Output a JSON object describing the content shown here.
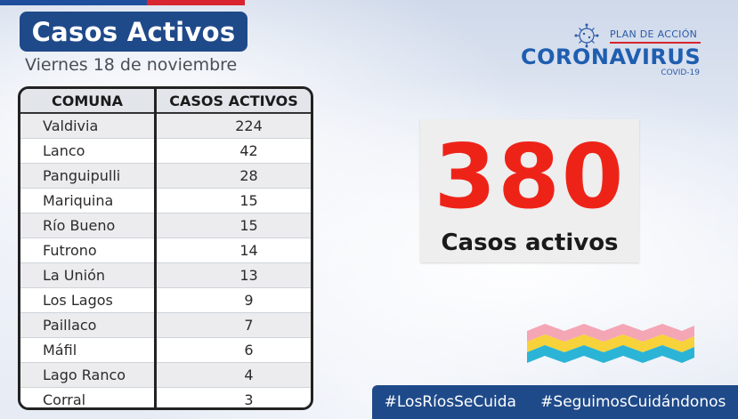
{
  "header": {
    "title": "Casos Activos",
    "date": "Viernes 18 de noviembre"
  },
  "logo": {
    "plan_text": "PLAN DE ACCIÓN",
    "brand_text": "CORONAVIRUS",
    "sub_text": "COVID-19",
    "icon": "virus-icon"
  },
  "table": {
    "headers": [
      "COMUNA",
      "CASOS ACTIVOS"
    ],
    "rows": [
      {
        "comuna": "Valdivia",
        "casos": "224"
      },
      {
        "comuna": "Lanco",
        "casos": "42"
      },
      {
        "comuna": "Panguipulli",
        "casos": "28"
      },
      {
        "comuna": "Mariquina",
        "casos": "15"
      },
      {
        "comuna": "Río Bueno",
        "casos": "15"
      },
      {
        "comuna": "Futrono",
        "casos": "14"
      },
      {
        "comuna": "La Unión",
        "casos": "13"
      },
      {
        "comuna": "Los Lagos",
        "casos": "9"
      },
      {
        "comuna": "Paillaco",
        "casos": "7"
      },
      {
        "comuna": "Máfil",
        "casos": "6"
      },
      {
        "comuna": "Lago Ranco",
        "casos": "4"
      },
      {
        "comuna": "Corral",
        "casos": "3"
      }
    ]
  },
  "summary": {
    "total": "380",
    "label": "Casos activos"
  },
  "footer": {
    "hashtags": [
      "#LosRíosSeCuida",
      "#SeguimosCuidándonos"
    ]
  },
  "colors": {
    "accent_red": "#ee2318",
    "brand_blue": "#1f4a8a",
    "wave_pink": "#f4a6b5",
    "wave_yellow": "#f7d23a",
    "wave_cyan": "#2bb4d6"
  }
}
